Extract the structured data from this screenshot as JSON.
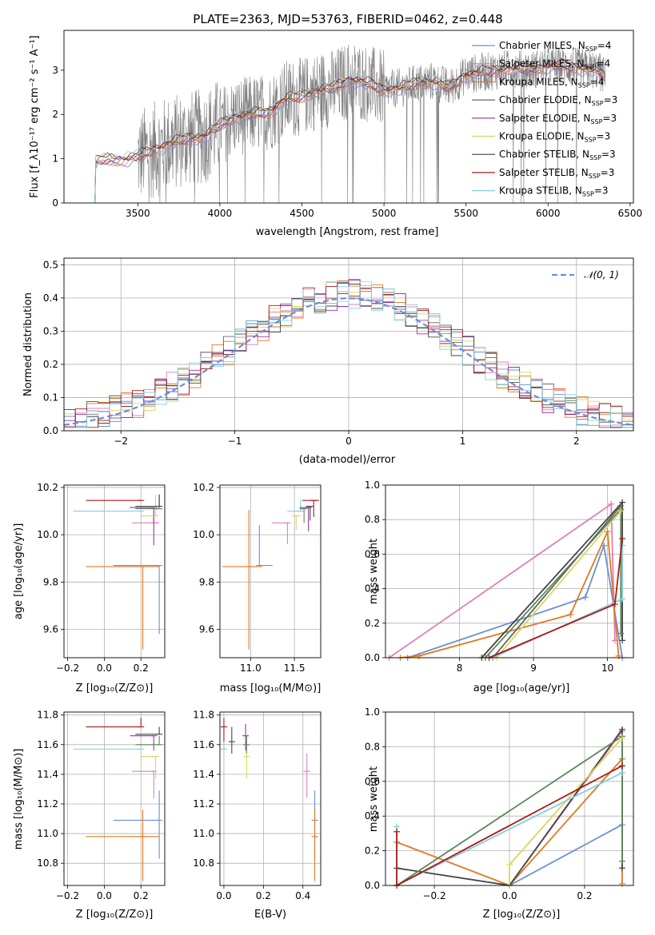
{
  "figure_title": "PLATE=2363, MJD=53763, FIBERID=0462, z=0.448",
  "colors": {
    "chabrier_miles": "#6a8fd8",
    "salpeter_miles": "#e07fb8",
    "kroupa_miles": "#e07a20",
    "chabrier_elodie": "#666666",
    "salpeter_elodie": "#9b30a8",
    "kroupa_elodie": "#d9d65c",
    "chabrier_stelib": "#444444",
    "salpeter_stelib": "#b01818",
    "kroupa_stelib": "#80d0dc",
    "data": "#808080",
    "normal_curve": "#6a8fd8",
    "green_extra": "#5a8a5a"
  },
  "chart_data": [
    {
      "id": "spectrum",
      "type": "line",
      "title": "PLATE=2363, MJD=53763, FIBERID=0462, z=0.448",
      "xlabel": "wavelength [Angstrom, rest frame]",
      "ylabel": "Flux [f_λ10⁻¹⁷ erg cm⁻² s⁻¹ A⁻¹]",
      "xlim": [
        3050,
        6520
      ],
      "ylim": [
        0,
        3.9
      ],
      "xticks": [
        3500,
        4000,
        4500,
        5000,
        5500,
        6000,
        6500
      ],
      "yticks": [
        0,
        1,
        2,
        3
      ],
      "grid": false,
      "legend_position": "top-right",
      "legend": [
        {
          "label": "Chabrier MILES, N",
          "sub": "SSP",
          "suffix": "=4",
          "color": "#6a8fd8"
        },
        {
          "label": "Salpeter MILES, N",
          "sub": "SSP",
          "suffix": "=4",
          "color": "#e07fb8"
        },
        {
          "label": "Kroupa MILES, N",
          "sub": "SSP",
          "suffix": "=4",
          "color": "#e07a20"
        },
        {
          "label": "Chabrier ELODIE, N",
          "sub": "SSP",
          "suffix": "=3",
          "color": "#666666"
        },
        {
          "label": "Salpeter ELODIE, N",
          "sub": "SSP",
          "suffix": "=3",
          "color": "#9b30a8"
        },
        {
          "label": "Kroupa ELODIE, N",
          "sub": "SSP",
          "suffix": "=3",
          "color": "#d9d65c"
        },
        {
          "label": "Chabrier STELIB, N",
          "sub": "SSP",
          "suffix": "=3",
          "color": "#444444"
        },
        {
          "label": "Salpeter STELIB, N",
          "sub": "SSP",
          "suffix": "=3",
          "color": "#b01818"
        },
        {
          "label": "Kroupa STELIB, N",
          "sub": "SSP",
          "suffix": "=3",
          "color": "#80d0dc"
        }
      ],
      "continuum": {
        "x": [
          3220,
          3240,
          3300,
          3400,
          3500,
          3600,
          3700,
          3800,
          3900,
          4000,
          4100,
          4200,
          4300,
          4400,
          4500,
          4600,
          4700,
          4800,
          4900,
          5000,
          5100,
          5200,
          5300,
          5400,
          5500,
          5600,
          5700,
          5800,
          5900,
          6000,
          6100,
          6200,
          6300,
          6350
        ],
        "y": [
          0.0,
          0.92,
          0.98,
          0.97,
          1.05,
          1.2,
          1.35,
          1.45,
          1.5,
          1.75,
          1.95,
          2.0,
          2.05,
          2.35,
          2.4,
          2.55,
          2.6,
          2.8,
          2.7,
          2.55,
          2.6,
          2.7,
          2.75,
          2.6,
          2.9,
          2.95,
          3.0,
          3.05,
          3.0,
          3.1,
          3.1,
          3.05,
          3.0,
          2.85
        ]
      },
      "data_range": [
        3500,
        6350
      ]
    },
    {
      "id": "residuals",
      "type": "histogram",
      "xlabel": "(data-model)/error",
      "ylabel": "Normed distribution",
      "xlim": [
        -2.5,
        2.5
      ],
      "ylim": [
        0,
        0.52
      ],
      "xticks": [
        -2,
        -1,
        0,
        1,
        2
      ],
      "yticks": [
        0.0,
        0.1,
        0.2,
        0.3,
        0.4,
        0.5
      ],
      "grid": true,
      "legend_position": "top-right",
      "legend": [
        {
          "label": "𝒩(0, 1)",
          "color": "#6a8fd8",
          "style": "dashed"
        }
      ],
      "bin_width": 0.1
    },
    {
      "id": "age_vs_Z",
      "type": "errorbar",
      "xlabel": "Z [log₁₀(Z/Z⊙)]",
      "ylabel": "age  [log₁₀(age/yr)]",
      "xlim": [
        -0.22,
        0.33
      ],
      "ylim": [
        9.48,
        10.21
      ],
      "xticks": [
        -0.2,
        0.0,
        0.2
      ],
      "yticks": [
        9.6,
        9.8,
        10.0,
        10.2
      ],
      "grid": true,
      "points": [
        {
          "color": "#6a8fd8",
          "x": 0.3,
          "y": 9.87,
          "xerr": [
            0.25,
            0.0
          ],
          "yerr": [
            0.29,
            0.0
          ]
        },
        {
          "color": "#e07a20",
          "x": 0.21,
          "y": 9.865,
          "xerr": [
            0.31,
            0.09
          ],
          "yerr": [
            0.35,
            0.0
          ]
        },
        {
          "color": "#e07fb8",
          "x": 0.27,
          "y": 10.05,
          "xerr": [
            0.12,
            0.03
          ],
          "yerr": [
            0.0,
            0.05
          ]
        },
        {
          "color": "#80d0dc",
          "x": 0.2,
          "y": 10.1,
          "xerr": [
            0.37,
            0.0
          ],
          "yerr": [
            0.0,
            0.0
          ]
        },
        {
          "color": "#b01818",
          "x": 0.2,
          "y": 10.145,
          "xerr": [
            0.3,
            0.0
          ],
          "yerr": [
            0.0,
            0.0
          ]
        },
        {
          "color": "#9b30a8",
          "x": 0.27,
          "y": 10.115,
          "xerr": [
            0.13,
            0.0
          ],
          "yerr": [
            0.16,
            0.0
          ]
        },
        {
          "color": "#d9d65c",
          "x": 0.28,
          "y": 10.08,
          "xerr": [
            0.08,
            0.0
          ],
          "yerr": [
            0.0,
            0.09
          ]
        },
        {
          "color": "#5a8a5a",
          "x": 0.3,
          "y": 10.11,
          "xerr": [
            0.13,
            0.0
          ],
          "yerr": [
            0.0,
            0.06
          ]
        },
        {
          "color": "#444444",
          "x": 0.3,
          "y": 10.12,
          "xerr": [
            0.13,
            0.0
          ],
          "yerr": [
            0.0,
            0.05
          ]
        }
      ]
    },
    {
      "id": "age_vs_mass",
      "type": "errorbar",
      "xlabel": "mass [log₁₀(M/M⊙)]",
      "ylabel": "",
      "xlim": [
        10.65,
        11.8
      ],
      "ylim": [
        9.48,
        10.21
      ],
      "xticks": [
        11.0,
        11.5
      ],
      "yticks": [
        9.6,
        9.8,
        10.0,
        10.2
      ],
      "grid": true,
      "points": [
        {
          "color": "#6a8fd8",
          "x": 11.1,
          "y": 9.87,
          "xerr": [
            0.0,
            0.15
          ],
          "yerr": [
            0.0,
            0.17
          ]
        },
        {
          "color": "#e07a20",
          "x": 10.98,
          "y": 9.865,
          "xerr": [
            0.3,
            0.15
          ],
          "yerr": [
            0.35,
            0.24
          ]
        },
        {
          "color": "#e07fb8",
          "x": 11.42,
          "y": 10.05,
          "xerr": [
            0.18,
            0.0
          ],
          "yerr": [
            0.09,
            0.0
          ]
        },
        {
          "color": "#80d0dc",
          "x": 11.57,
          "y": 10.1,
          "xerr": [
            0.15,
            0.0
          ],
          "yerr": [
            0.0,
            0.05
          ]
        },
        {
          "color": "#b01818",
          "x": 11.72,
          "y": 10.145,
          "xerr": [
            0.13,
            0.06
          ],
          "yerr": [
            0.07,
            0.0
          ]
        },
        {
          "color": "#9b30a8",
          "x": 11.66,
          "y": 10.115,
          "xerr": [
            0.1,
            0.0
          ],
          "yerr": [
            0.1,
            0.0
          ]
        },
        {
          "color": "#d9d65c",
          "x": 11.52,
          "y": 10.08,
          "xerr": [
            0.05,
            0.05
          ],
          "yerr": [
            0.06,
            0.0
          ]
        },
        {
          "color": "#5a8a5a",
          "x": 11.61,
          "y": 10.11,
          "xerr": [
            0.05,
            0.0
          ],
          "yerr": [
            0.06,
            0.0
          ]
        },
        {
          "color": "#444444",
          "x": 11.68,
          "y": 10.12,
          "xerr": [
            0.05,
            0.0
          ],
          "yerr": [
            0.06,
            0.0
          ]
        }
      ]
    },
    {
      "id": "massweight_vs_age",
      "type": "line",
      "xlabel": "age  [log₁₀(age/yr)]",
      "ylabel": "mass weight",
      "xlim": [
        7.0,
        10.35
      ],
      "ylim": [
        0.0,
        1.0
      ],
      "xticks": [
        8,
        9,
        10
      ],
      "yticks": [
        0.0,
        0.2,
        0.4,
        0.6,
        0.8,
        1.0
      ],
      "grid": true,
      "series": [
        {
          "color": "#e07fb8",
          "x": [
            7.05,
            10.05,
            10.1
          ],
          "y": [
            0.0,
            0.89,
            0.1
          ]
        },
        {
          "color": "#6a8fd8",
          "x": [
            7.3,
            9.7,
            9.95,
            10.2
          ],
          "y": [
            0.0,
            0.35,
            0.65,
            0.0
          ]
        },
        {
          "color": "#e07a20",
          "x": [
            7.2,
            7.45,
            9.5,
            10.0,
            10.15
          ],
          "y": [
            0.0,
            0.01,
            0.25,
            0.73,
            0.01
          ]
        },
        {
          "color": "#444444",
          "x": [
            8.3,
            10.2,
            10.2
          ],
          "y": [
            0.0,
            0.9,
            0.1
          ]
        },
        {
          "color": "#5a8a5a",
          "x": [
            8.35,
            10.18,
            10.18
          ],
          "y": [
            0.0,
            0.86,
            0.14
          ]
        },
        {
          "color": "#666666",
          "x": [
            8.45,
            10.18
          ],
          "y": [
            0.0,
            0.88
          ]
        },
        {
          "color": "#d9d65c",
          "x": [
            8.5,
            10.18
          ],
          "y": [
            0.0,
            0.85
          ]
        },
        {
          "color": "#80d0dc",
          "x": [
            8.45,
            10.2,
            10.2
          ],
          "y": [
            0.0,
            0.34,
            0.65
          ]
        },
        {
          "color": "#b01818",
          "x": [
            8.4,
            10.1,
            10.2
          ],
          "y": [
            0.0,
            0.31,
            0.69
          ]
        }
      ]
    },
    {
      "id": "mass_vs_Z",
      "type": "errorbar",
      "xlabel": "Z [log₁₀(Z/Z⊙)]",
      "ylabel": "mass [log₁₀(M/M⊙)]",
      "xlim": [
        -0.22,
        0.33
      ],
      "ylim": [
        10.65,
        11.82
      ],
      "xticks": [
        -0.2,
        0.0,
        0.2
      ],
      "yticks": [
        10.8,
        11.0,
        11.2,
        11.4,
        11.6,
        11.8
      ],
      "grid": true,
      "points": [
        {
          "color": "#6a8fd8",
          "x": 0.3,
          "y": 11.09,
          "xerr": [
            0.25,
            0.0
          ],
          "yerr": [
            0.26,
            0.2
          ]
        },
        {
          "color": "#e07a20",
          "x": 0.21,
          "y": 10.98,
          "xerr": [
            0.31,
            0.09
          ],
          "yerr": [
            0.3,
            0.18
          ]
        },
        {
          "color": "#e07fb8",
          "x": 0.27,
          "y": 11.42,
          "xerr": [
            0.12,
            0.0
          ],
          "yerr": [
            0.18,
            0.0
          ]
        },
        {
          "color": "#80d0dc",
          "x": 0.2,
          "y": 11.57,
          "xerr": [
            0.37,
            0.0
          ],
          "yerr": [
            0.0,
            0.0
          ]
        },
        {
          "color": "#b01818",
          "x": 0.2,
          "y": 11.72,
          "xerr": [
            0.3,
            0.0
          ],
          "yerr": [
            0.0,
            0.06
          ]
        },
        {
          "color": "#9b30a8",
          "x": 0.27,
          "y": 11.66,
          "xerr": [
            0.13,
            0.0
          ],
          "yerr": [
            0.1,
            0.0
          ]
        },
        {
          "color": "#d9d65c",
          "x": 0.28,
          "y": 11.52,
          "xerr": [
            0.08,
            0.0
          ],
          "yerr": [
            0.15,
            0.0
          ]
        },
        {
          "color": "#5a8a5a",
          "x": 0.3,
          "y": 11.6,
          "xerr": [
            0.13,
            0.0
          ],
          "yerr": [
            0.0,
            0.06
          ]
        },
        {
          "color": "#444444",
          "x": 0.3,
          "y": 11.67,
          "xerr": [
            0.13,
            0.0
          ],
          "yerr": [
            0.0,
            0.05
          ]
        }
      ]
    },
    {
      "id": "mass_vs_ebv",
      "type": "errorbar",
      "xlabel": "E(B-V)",
      "ylabel": "",
      "xlim": [
        -0.02,
        0.49
      ],
      "ylim": [
        10.65,
        11.82
      ],
      "xticks": [
        0.0,
        0.2,
        0.4
      ],
      "yticks": [
        10.8,
        11.0,
        11.2,
        11.4,
        11.6,
        11.8
      ],
      "grid": true,
      "points": [
        {
          "color": "#6a8fd8",
          "x": 0.46,
          "y": 11.09,
          "xerr": [
            0,
            0
          ],
          "yerr": [
            0.26,
            0.2
          ]
        },
        {
          "color": "#e07a20",
          "x": 0.46,
          "y": 10.98,
          "xerr": [
            0,
            0
          ],
          "yerr": [
            0.3,
            0.18
          ]
        },
        {
          "color": "#e07fb8",
          "x": 0.42,
          "y": 11.42,
          "xerr": [
            0,
            0
          ],
          "yerr": [
            0.18,
            0.12
          ]
        },
        {
          "color": "#80d0dc",
          "x": 0.0,
          "y": 11.57,
          "xerr": [
            0,
            0
          ],
          "yerr": [
            0.0,
            0.06
          ]
        },
        {
          "color": "#b01818",
          "x": 0.0,
          "y": 11.72,
          "xerr": [
            0,
            0
          ],
          "yerr": [
            0.1,
            0.06
          ]
        },
        {
          "color": "#9b30a8",
          "x": 0.11,
          "y": 11.66,
          "xerr": [
            0,
            0
          ],
          "yerr": [
            0.1,
            0.08
          ]
        },
        {
          "color": "#d9d65c",
          "x": 0.115,
          "y": 11.52,
          "xerr": [
            0,
            0
          ],
          "yerr": [
            0.15,
            0.12
          ]
        },
        {
          "color": "#5a8a5a",
          "x": 0.115,
          "y": 11.6,
          "xerr": [
            0,
            0
          ],
          "yerr": [
            0.06,
            0.06
          ]
        },
        {
          "color": "#444444",
          "x": 0.04,
          "y": 11.62,
          "xerr": [
            0,
            0
          ],
          "yerr": [
            0.08,
            0.1
          ]
        }
      ]
    },
    {
      "id": "massweight_vs_Z",
      "type": "line",
      "xlabel": "Z [log₁₀(Z/Z⊙)]",
      "ylabel": "mass weight",
      "xlim": [
        -0.33,
        0.33
      ],
      "ylim": [
        0.0,
        1.0
      ],
      "xticks": [
        -0.2,
        0.0,
        0.2
      ],
      "yticks": [
        0.0,
        0.2,
        0.4,
        0.6,
        0.8,
        1.0
      ],
      "grid": true,
      "series": [
        {
          "color": "#e07fb8",
          "x": [
            0.0,
            0.3,
            0.3
          ],
          "y": [
            0.0,
            0.89,
            0.1
          ]
        },
        {
          "color": "#6a8fd8",
          "x": [
            0.0,
            0.3,
            0.3
          ],
          "y": [
            0.0,
            0.35,
            0.65
          ]
        },
        {
          "color": "#e07a20",
          "x": [
            -0.3,
            0.0,
            0.3,
            0.3
          ],
          "y": [
            0.25,
            0.0,
            0.73,
            0.01
          ]
        },
        {
          "color": "#444444",
          "x": [
            -0.3,
            0.0,
            0.3,
            0.3
          ],
          "y": [
            0.1,
            0.0,
            0.9,
            0.1
          ]
        },
        {
          "color": "#5a8a5a",
          "x": [
            -0.3,
            0.3,
            0.3
          ],
          "y": [
            0.0,
            0.86,
            0.14
          ]
        },
        {
          "color": "#d9d65c",
          "x": [
            0.0,
            0.0,
            0.3
          ],
          "y": [
            0.0,
            0.12,
            0.85
          ]
        },
        {
          "color": "#80d0dc",
          "x": [
            -0.3,
            -0.3,
            0.3
          ],
          "y": [
            0.34,
            0.0,
            0.65
          ]
        },
        {
          "color": "#b01818",
          "x": [
            -0.3,
            -0.3,
            0.3
          ],
          "y": [
            0.31,
            0.0,
            0.69
          ]
        }
      ]
    }
  ]
}
